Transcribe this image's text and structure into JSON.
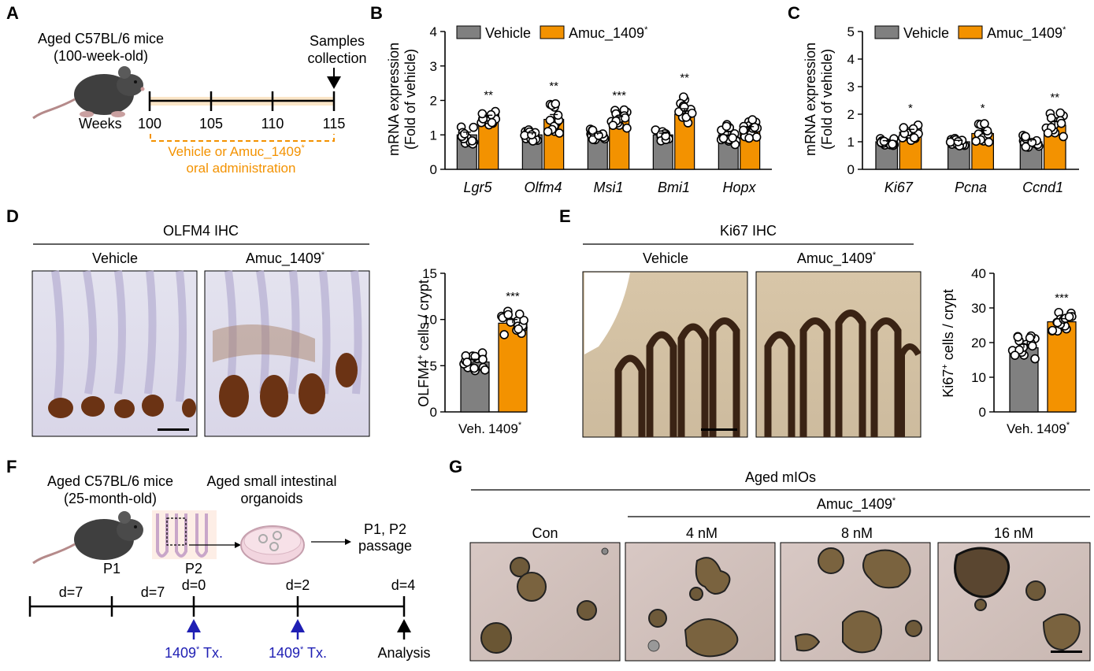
{
  "panels": {
    "A": {
      "letter": "A",
      "title_line1": "Aged C57BL/6 mice",
      "title_line2": "(100-week-old)",
      "samples_line1": "Samples",
      "samples_line2": "collection",
      "weeks_label": "Weeks",
      "ticks": [
        "100",
        "105",
        "110",
        "115"
      ],
      "treatment_line1": "Vehicle or Amuc_1409",
      "treatment_sup": "*",
      "treatment_line2": "oral administration",
      "colors": {
        "timeline_band": "#fbe6c8",
        "treatment_text": "#f39200"
      }
    },
    "B": {
      "letter": "B",
      "legend_vehicle": "Vehicle",
      "legend_treated": "Amuc_1409",
      "legend_sup": "*",
      "ylabel_line1": "mRNA expression",
      "ylabel_line2": "(Fold of vehicle)"
    },
    "C": {
      "letter": "C",
      "legend_vehicle": "Vehicle",
      "legend_treated": "Amuc_1409",
      "legend_sup": "*",
      "ylabel_line1": "mRNA expression",
      "ylabel_line2": "(Fold of vehicle)"
    },
    "D": {
      "letter": "D",
      "header": "OLFM4 IHC",
      "vehicle_label": "Vehicle",
      "treated_label": "Amuc_1409",
      "treated_sup": "*",
      "ylabel_pre": "OLFM4",
      "ylabel_sup": "+",
      "ylabel_post": " cells / crypt",
      "xtick_veh": "Veh.",
      "xtick_treated": "1409",
      "xtick_sup": "*"
    },
    "E": {
      "letter": "E",
      "header": "Ki67 IHC",
      "vehicle_label": "Vehicle",
      "treated_label": "Amuc_1409",
      "treated_sup": "*",
      "ylabel_pre": "Ki67",
      "ylabel_sup": "+",
      "ylabel_post": " cells / crypt",
      "xtick_veh": "Veh.",
      "xtick_treated": "1409",
      "xtick_sup": "*"
    },
    "F": {
      "letter": "F",
      "mice_line1": "Aged C57BL/6 mice",
      "mice_line2": "(25-month-old)",
      "organoid_line1": "Aged small intestinal",
      "organoid_line2": "organoids",
      "passage_line1": "P1, P2",
      "passage_line2": "passage",
      "p1": "P1",
      "p2": "P2",
      "seg1": "d=7",
      "seg2": "d=7",
      "d0": "d=0",
      "d2": "d=2",
      "d4": "d=4",
      "tx": "1409",
      "tx_sup": "*",
      "tx_post": " Tx.",
      "analysis": "Analysis",
      "colors": {
        "tx_arrow": "#1f1fb4"
      }
    },
    "G": {
      "letter": "G",
      "header": "Aged mIOs",
      "subheader": "Amuc_1409",
      "subheader_sup": "*",
      "conditions": [
        "Con",
        "4 nM",
        "8 nM",
        "16 nM"
      ]
    }
  },
  "chart_data": [
    {
      "panel": "B",
      "type": "bar",
      "categories": [
        "Lgr5",
        "Olfm4",
        "Msi1",
        "Bmi1",
        "Hopx"
      ],
      "series": [
        {
          "name": "Vehicle",
          "color": "#808080",
          "values": [
            1.0,
            1.0,
            1.0,
            1.0,
            1.0
          ],
          "sem": [
            0.08,
            0.06,
            0.05,
            0.05,
            0.09
          ]
        },
        {
          "name": "Amuc_1409*",
          "color": "#f39200",
          "values": [
            1.5,
            1.45,
            1.45,
            1.6,
            1.15
          ],
          "sem": [
            0.07,
            0.14,
            0.08,
            0.16,
            0.09
          ]
        }
      ],
      "significance": [
        "**",
        "**",
        "***",
        "**",
        ""
      ],
      "yticks": [
        "0",
        "1",
        "2",
        "3",
        "4"
      ],
      "ylim": [
        0,
        4
      ]
    },
    {
      "panel": "C",
      "type": "bar",
      "categories": [
        "Ki67",
        "Pcna",
        "Ccnd1"
      ],
      "series": [
        {
          "name": "Vehicle",
          "color": "#808080",
          "values": [
            1.0,
            1.0,
            1.0
          ],
          "sem": [
            0.04,
            0.05,
            0.07
          ]
        },
        {
          "name": "Amuc_1409*",
          "color": "#f39200",
          "values": [
            1.35,
            1.3,
            1.6
          ],
          "sem": [
            0.1,
            0.11,
            0.13
          ]
        }
      ],
      "significance": [
        "*",
        "*",
        "**"
      ],
      "yticks": [
        "0",
        "1",
        "2",
        "3",
        "4",
        "5"
      ],
      "ylim": [
        0,
        5
      ]
    },
    {
      "panel": "D",
      "type": "bar",
      "categories": [
        "Veh.",
        "1409*"
      ],
      "values": [
        5.4,
        9.6
      ],
      "sem": [
        0.3,
        0.4
      ],
      "colors": [
        "#808080",
        "#f39200"
      ],
      "significance": [
        "",
        "***"
      ],
      "yticks": [
        "0",
        "5",
        "10",
        "15"
      ],
      "ylim": [
        0,
        15
      ]
    },
    {
      "panel": "E",
      "type": "bar",
      "categories": [
        "Veh.",
        "1409*"
      ],
      "values": [
        18.5,
        26
      ],
      "sem": [
        1.0,
        0.9
      ],
      "colors": [
        "#808080",
        "#f39200"
      ],
      "significance": [
        "",
        "***"
      ],
      "yticks": [
        "0",
        "10",
        "20",
        "30",
        "40"
      ],
      "ylim": [
        0,
        40
      ]
    }
  ]
}
